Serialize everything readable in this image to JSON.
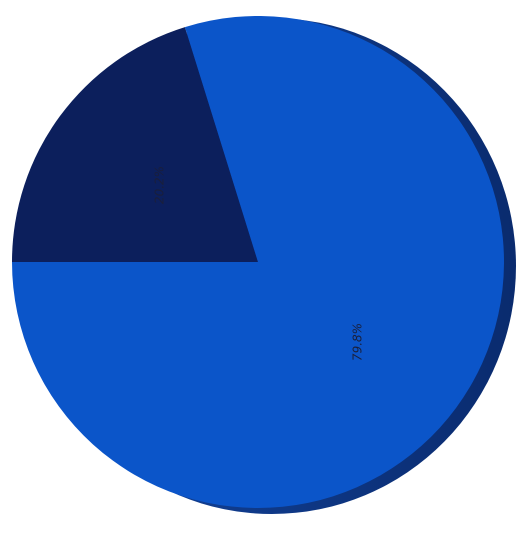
{
  "chart_data": {
    "type": "pie",
    "slices": [
      {
        "label": "20.2%",
        "value": 20.2,
        "color": "#0c1f5c"
      },
      {
        "label": "79.8%",
        "value": 79.8,
        "color": "#0b55c9"
      }
    ],
    "title": "",
    "legend": "none",
    "style": "3d-edge"
  },
  "colors": {
    "background": "#ffffff",
    "edge_dark": "#0a2b6e",
    "edge_mid": "#1346a0"
  }
}
